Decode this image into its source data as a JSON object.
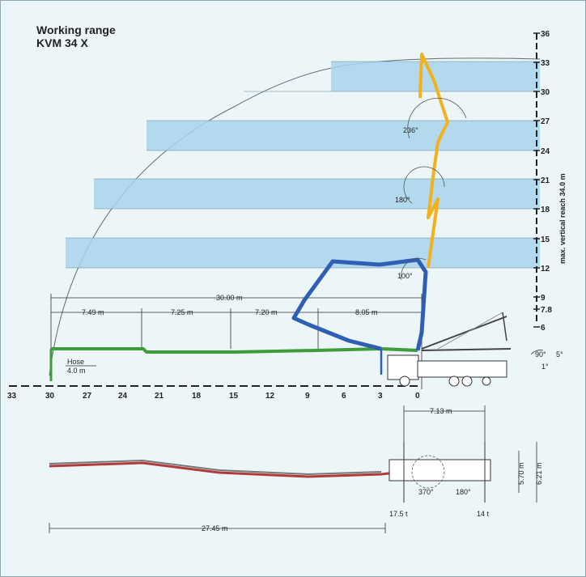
{
  "title": "Working range",
  "model": "KVM 34 X",
  "colors": {
    "background": "#ecf5f8",
    "band": "#a9d4ec",
    "boom_green": "#3e9d3a",
    "boom_blue": "#2f5fb5",
    "boom_yellow": "#f1b21d",
    "boom_red": "#b23a3a"
  },
  "right_axis": {
    "labels": [
      "36",
      "33",
      "30",
      "27",
      "24",
      "21",
      "18",
      "15",
      "12",
      "9",
      "7.8",
      "6"
    ],
    "vertical_reach_label": "max. vertical reach 34.0 m"
  },
  "bottom_axis": {
    "labels": [
      "33",
      "30",
      "27",
      "24",
      "21",
      "18",
      "15",
      "12",
      "9",
      "6",
      "3",
      "0"
    ]
  },
  "dimensions": {
    "total": "30.00 m",
    "segments": [
      "7.49 m",
      "7.25 m",
      "7.20 m",
      "8.05 m"
    ],
    "hose_label": "Hose",
    "hose_length": "4.0 m"
  },
  "angles": {
    "arm4": "236°",
    "arm3": "180°",
    "arm2": "100°",
    "arm1": "90°",
    "tilt": "5°",
    "level": "1°"
  },
  "top_view": {
    "outrigger_span": "7.13 m",
    "width_front": "5.70 m",
    "width_rear": "6.21 m",
    "slew": "370°",
    "slew_rear": "180°",
    "load_front": "17.5 t",
    "load_rear": "14 t",
    "horizontal_reach": "27.45 m"
  }
}
